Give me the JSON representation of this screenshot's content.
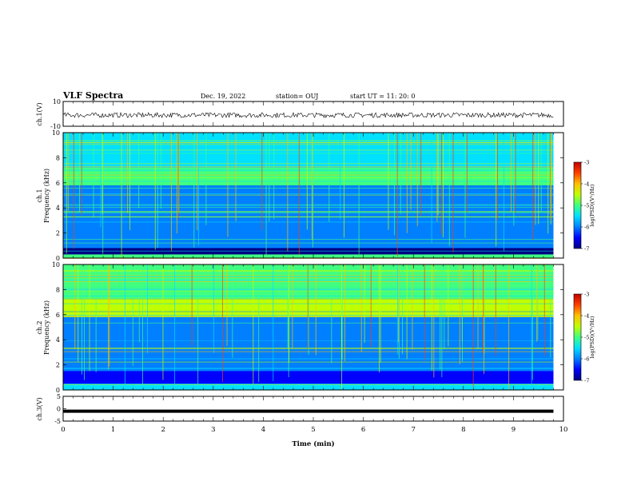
{
  "header": {
    "title": "VLF Spectra",
    "date": "Dec. 19, 2022",
    "station": "station= OUJ",
    "start": "start  UT =   11: 20: 0"
  },
  "colors": {
    "colormap": [
      "#000080",
      "#0000ff",
      "#0080ff",
      "#00e0ff",
      "#40ff80",
      "#c0ff00",
      "#ffc000",
      "#ff4000",
      "#c00000"
    ],
    "frame": "#000000",
    "background": "#ffffff"
  },
  "chart_data": [
    {
      "type": "line",
      "id": "ch1-waveform",
      "ylabel": "ch.1(V)",
      "ylim": [
        -10,
        10
      ],
      "yticks": [
        "10",
        "-10"
      ],
      "x": [
        0,
        1,
        2,
        3,
        4,
        5,
        6,
        7,
        8,
        9,
        9.8
      ],
      "values": [
        -1,
        -1,
        -1,
        -1,
        -1,
        -1,
        -1,
        -1,
        -1,
        -1,
        -1
      ],
      "amplitude_band": [
        -3,
        1
      ]
    },
    {
      "type": "heatmap",
      "id": "ch1-spectrogram",
      "ylabel": "ch.1\nFrequency  (kHz)",
      "ylim": [
        0,
        10
      ],
      "yticks": [
        "0",
        "2",
        "4",
        "6",
        "8",
        "10"
      ],
      "x_extent_min": [
        0,
        9.8
      ],
      "bands_khz": [
        {
          "from": 0,
          "to": 0.3,
          "level": 0.45
        },
        {
          "from": 0.3,
          "to": 0.8,
          "level": 0.05
        },
        {
          "from": 0.8,
          "to": 1.5,
          "level": 0.3
        },
        {
          "from": 1.5,
          "to": 5.8,
          "level": 0.22
        },
        {
          "from": 5.8,
          "to": 7.2,
          "level": 0.5
        },
        {
          "from": 7.2,
          "to": 10,
          "level": 0.32
        }
      ],
      "colorbar": {
        "label": "log(PSD)(V²/Hz)",
        "ticks": [
          "-3",
          "-4",
          "-5",
          "-6",
          "-7"
        ],
        "range": [
          -7,
          -3
        ]
      }
    },
    {
      "type": "heatmap",
      "id": "ch2-spectrogram",
      "ylabel": "ch.2\nFrequency  (kHz)",
      "ylim": [
        0,
        10
      ],
      "yticks": [
        "0",
        "2",
        "4",
        "6",
        "8",
        "10"
      ],
      "x_extent_min": [
        0,
        9.8
      ],
      "bands_khz": [
        {
          "from": 0,
          "to": 0.5,
          "level": 0.35
        },
        {
          "from": 0.5,
          "to": 1.5,
          "level": 0.12
        },
        {
          "from": 1.5,
          "to": 5.8,
          "level": 0.28
        },
        {
          "from": 5.8,
          "to": 7.2,
          "level": 0.6
        },
        {
          "from": 7.2,
          "to": 10,
          "level": 0.55
        }
      ],
      "colorbar": {
        "label": "log(PSD)(V²/Hz)",
        "ticks": [
          "-3",
          "-4",
          "-5",
          "-6",
          "-7"
        ],
        "range": [
          -7,
          -3
        ]
      }
    },
    {
      "type": "line",
      "id": "ch3-waveform",
      "ylabel": "ch.3(V)",
      "ylim": [
        -5,
        5
      ],
      "yticks": [
        "5",
        "0",
        "-5"
      ],
      "x": [
        0,
        9.8
      ],
      "values": [
        -1,
        -1
      ]
    }
  ],
  "xaxis": {
    "label": "Time  (min)",
    "ticks": [
      "0",
      "1",
      "2",
      "3",
      "4",
      "5",
      "6",
      "7",
      "8",
      "9",
      "10"
    ],
    "xlim": [
      0,
      10
    ]
  }
}
